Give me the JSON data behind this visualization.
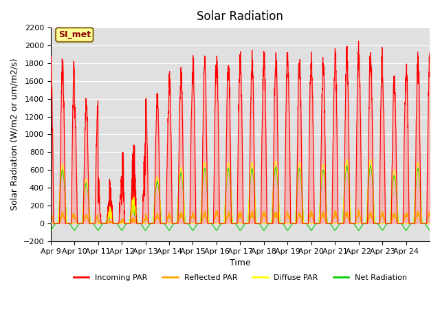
{
  "title": "Solar Radiation",
  "xlabel": "Time",
  "ylabel": "Solar Radiation (W/m2 or um/m2/s)",
  "ylim": [
    -200,
    2200
  ],
  "yticks": [
    -200,
    0,
    200,
    400,
    600,
    800,
    1000,
    1200,
    1400,
    1600,
    1800,
    2000,
    2200
  ],
  "x_labels": [
    "Apr 9",
    "Apr 10",
    "Apr 11",
    "Apr 12",
    "Apr 13",
    "Apr 14",
    "Apr 15",
    "Apr 16",
    "Apr 17",
    "Apr 18",
    "Apr 19",
    "Apr 20",
    "Apr 21",
    "Apr 22",
    "Apr 23",
    "Apr 24"
  ],
  "annotation_text": "SI_met",
  "annotation_color": "#8B0000",
  "annotation_bg": "#FFFF99",
  "annotation_border": "#8B6914",
  "plot_bg": "#E0E0E0",
  "colors": {
    "incoming": "#FF0000",
    "incoming_fill": "#FF9999",
    "reflected": "#FFA500",
    "diffuse": "#FFFF00",
    "net": "#00CC00"
  },
  "legend_labels": [
    "Incoming PAR",
    "Reflected PAR",
    "Diffuse PAR",
    "Net Radiation"
  ],
  "n_days": 16,
  "points_per_day": 144,
  "incoming_peaks": [
    1900,
    1430,
    550,
    1000,
    1500,
    1800,
    1950,
    1950,
    1950,
    2000,
    1950,
    1900,
    2050,
    2050,
    1700,
    1950
  ],
  "cloudy_days": [
    2,
    3
  ],
  "night_negative": -80
}
